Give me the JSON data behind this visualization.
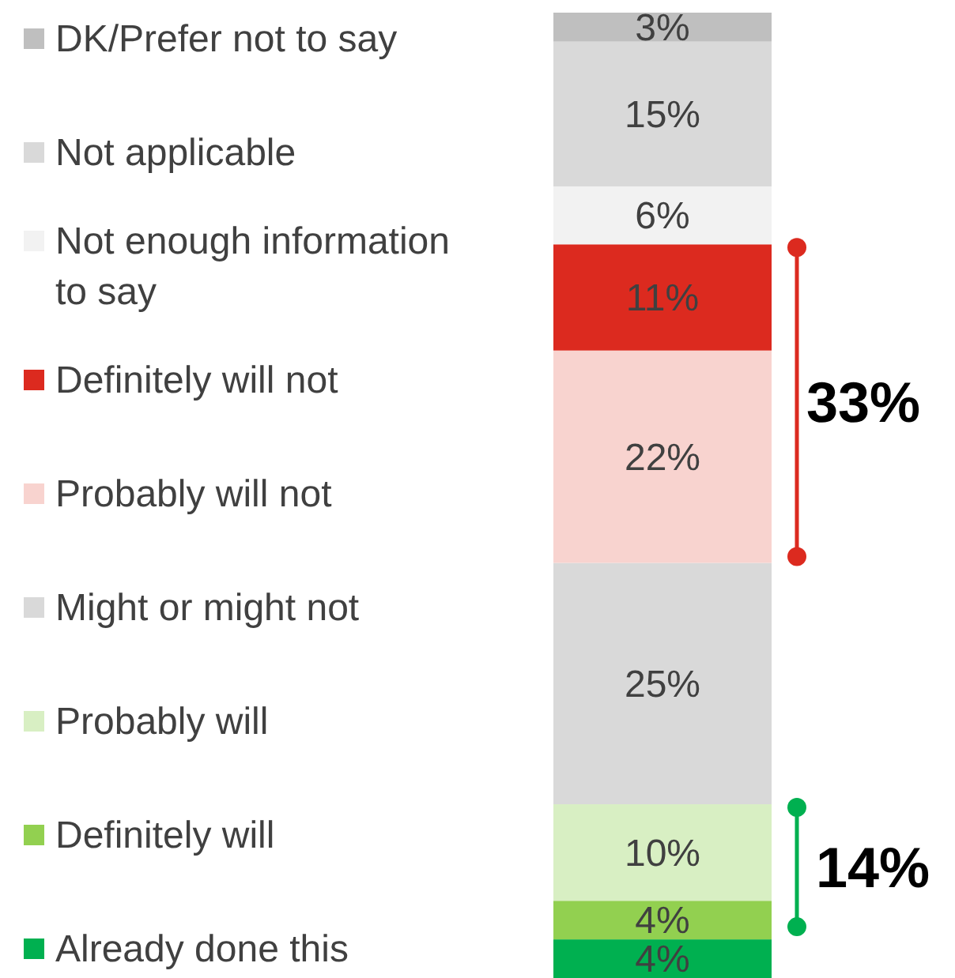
{
  "chart_data": {
    "type": "bar",
    "stacked": true,
    "categories": [
      null
    ],
    "legend": "left",
    "series": [
      {
        "name": "Already done this",
        "color": "#00b050",
        "values": [
          4
        ],
        "value_labels": [
          "4%"
        ]
      },
      {
        "name": "Definitely will",
        "color": "#92d050",
        "values": [
          4
        ],
        "value_labels": [
          "4%"
        ]
      },
      {
        "name": "Probably will",
        "color": "#d8efc3",
        "values": [
          10
        ],
        "value_labels": [
          "10%"
        ]
      },
      {
        "name": "Might or might not",
        "color": "#d9d9d9",
        "values": [
          25
        ],
        "value_labels": [
          "25%"
        ]
      },
      {
        "name": "Probably will not",
        "color": "#f8d3cf",
        "values": [
          22
        ],
        "value_labels": [
          "22%"
        ]
      },
      {
        "name": "Definitely will not",
        "color": "#dc2a1f",
        "values": [
          11
        ],
        "value_labels": [
          "11%"
        ]
      },
      {
        "name": "Not enough information to say",
        "color": "#f2f2f2",
        "values": [
          6
        ],
        "value_labels": [
          "6%"
        ]
      },
      {
        "name": "Not applicable",
        "color": "#d9d9d9",
        "values": [
          15
        ],
        "value_labels": [
          "15%"
        ]
      },
      {
        "name": "DK/Prefer not to say",
        "color": "#bfbfbf",
        "values": [
          3
        ],
        "value_labels": [
          "3%"
        ]
      }
    ],
    "annotations": [
      "33%",
      "14%"
    ]
  }
}
